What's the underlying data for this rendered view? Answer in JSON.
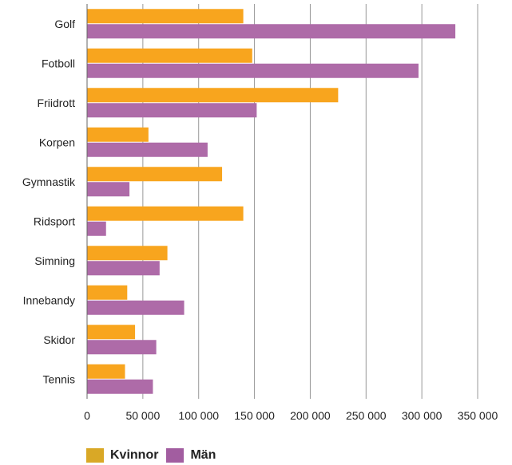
{
  "chart_data": {
    "type": "bar",
    "orientation": "horizontal",
    "categories": [
      "Golf",
      "Fotboll",
      "Friidrott",
      "Korpen",
      "Gymnastik",
      "Ridsport",
      "Simning",
      "Innebandy",
      "Skidor",
      "Tennis"
    ],
    "series": [
      {
        "name": "Kvinnor",
        "color": "#F8A51E",
        "values": [
          140000,
          148000,
          225000,
          55000,
          121000,
          140000,
          72000,
          36000,
          43000,
          34000
        ]
      },
      {
        "name": "Män",
        "color": "#AE6BA8",
        "values": [
          330000,
          297000,
          152000,
          108000,
          38000,
          17000,
          65000,
          87000,
          62000,
          59000
        ]
      }
    ],
    "xlim": [
      0,
      350000
    ],
    "xticks": [
      0,
      50000,
      100000,
      150000,
      200000,
      250000,
      300000,
      350000
    ],
    "xtick_labels": [
      "0",
      "50 000",
      "100 000",
      "150 000",
      "200 000",
      "250 000",
      "300 000",
      "350 000"
    ],
    "grid": true,
    "legend_position": "bottom-left",
    "title": "",
    "xlabel": "",
    "ylabel": ""
  }
}
